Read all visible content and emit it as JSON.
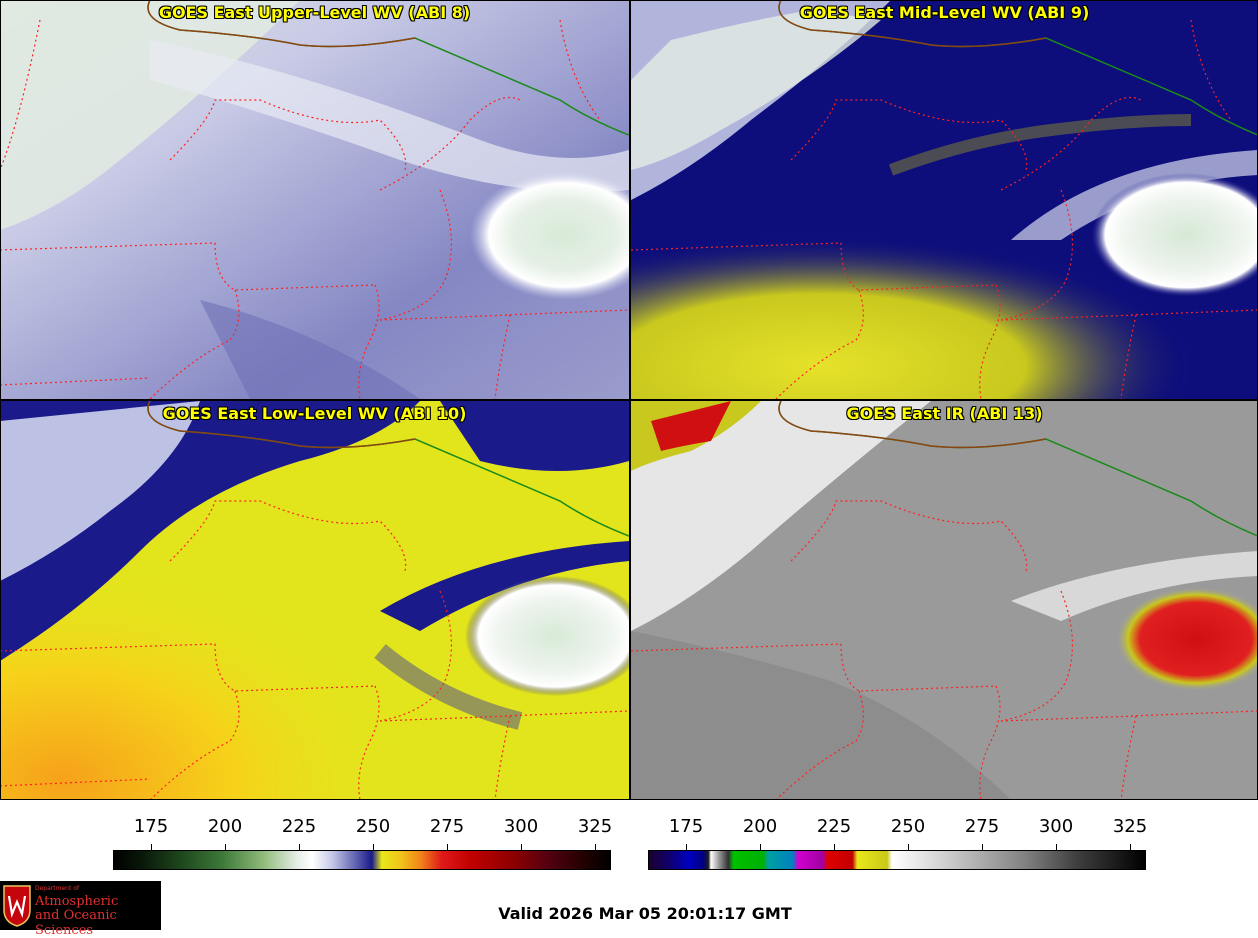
{
  "panels": [
    {
      "title": "GOES East Upper-Level WV (ABI 8)",
      "colormap": "wv"
    },
    {
      "title": "GOES East Mid-Level WV (ABI 9)",
      "colormap": "wv"
    },
    {
      "title": "GOES East Low-Level WV (ABI 10)",
      "colormap": "wv"
    },
    {
      "title": "GOES East IR (ABI 13)",
      "colormap": "ir"
    }
  ],
  "colorbars": [
    {
      "name": "wv",
      "ticks": [
        "175",
        "200",
        "225",
        "250",
        "275",
        "300",
        "325"
      ]
    },
    {
      "name": "ir",
      "ticks": [
        "175",
        "200",
        "225",
        "250",
        "275",
        "300",
        "325"
      ]
    }
  ],
  "logo": {
    "small": "Department of",
    "line1": "Atmospheric",
    "line2": "and Oceanic Sciences"
  },
  "valid_time": "Valid 2026 Mar 05 20:01:17 GMT"
}
